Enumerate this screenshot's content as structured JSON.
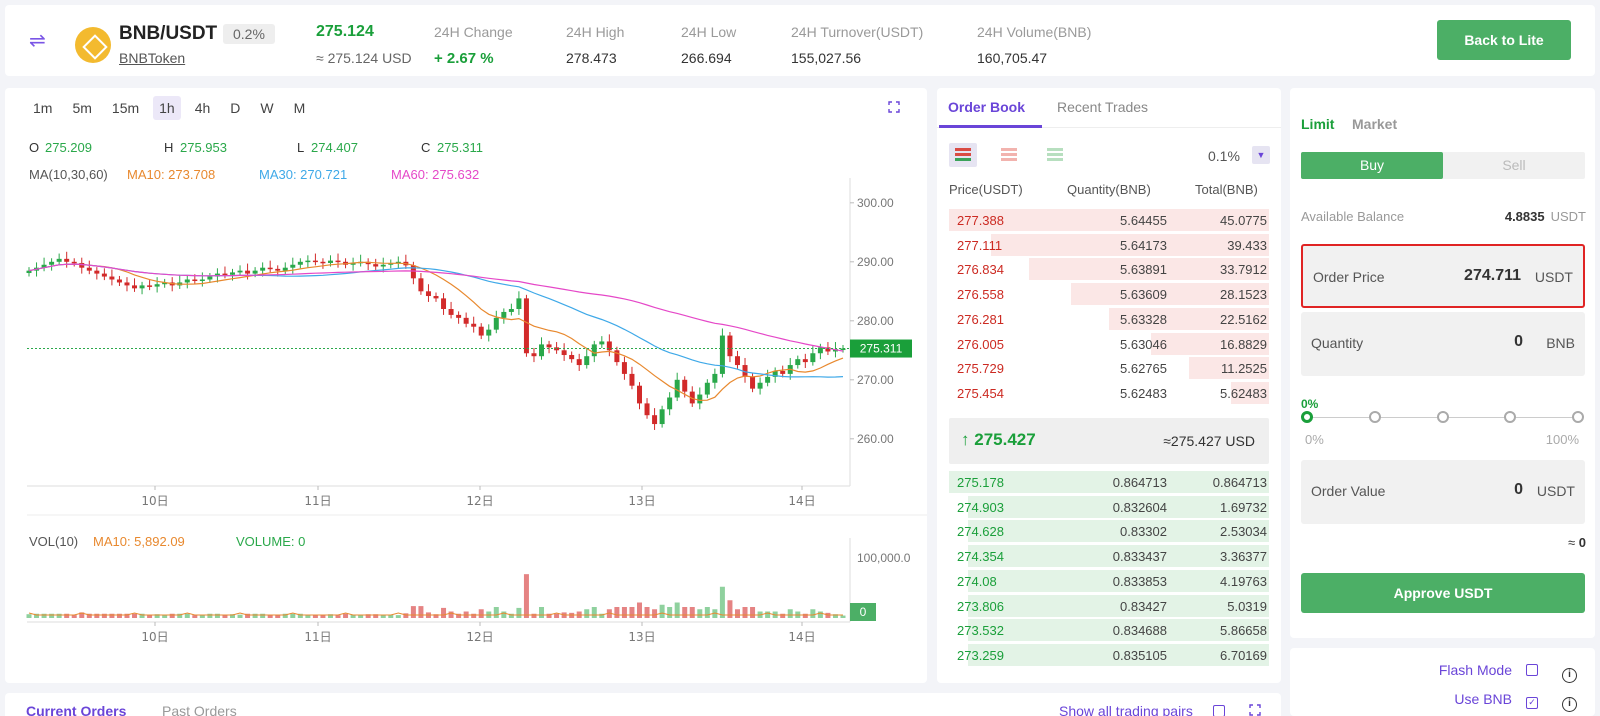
{
  "header": {
    "pair": "BNB/USDT",
    "pct_badge": "0.2%",
    "token_link": "BNBToken",
    "last_price": "275.124",
    "last_price_usd": "≈ 275.124 USD",
    "stats": [
      {
        "label": "24H Change",
        "value": "+ 2.67 %"
      },
      {
        "label": "24H High",
        "value": "278.473"
      },
      {
        "label": "24H Low",
        "value": "266.694"
      },
      {
        "label": "24H Turnover(USDT)",
        "value": "155,027.56"
      },
      {
        "label": "24H Volume(BNB)",
        "value": "160,705.47"
      }
    ],
    "back_button": "Back to Lite"
  },
  "chart": {
    "intervals": [
      "1m",
      "5m",
      "15m",
      "1h",
      "4h",
      "D",
      "W",
      "M"
    ],
    "active_interval": "1h",
    "ohlc": {
      "o_label": "O",
      "o": "275.209",
      "h_label": "H",
      "h": "275.953",
      "l_label": "L",
      "l": "274.407",
      "c_label": "C",
      "c": "275.311"
    },
    "ma": {
      "label": "MA(10,30,60)",
      "ma10": "MA10: 273.708",
      "ma30": "MA30: 270.721",
      "ma60": "MA60: 275.632"
    },
    "vol": {
      "label": "VOL(10)",
      "ma10": "MA10: 5,892.09",
      "volume": "VOLUME: 0"
    },
    "colors": {
      "up": "#2aa84a",
      "down": "#d22a2a",
      "ma10": "#e8892f",
      "ma30": "#3fa9e8",
      "ma60": "#e548c8"
    }
  },
  "chart_data": {
    "type": "candlestick",
    "x_ticks": [
      "10日",
      "11日",
      "12日",
      "13日",
      "14日"
    ],
    "y_ticks": [
      "300.00",
      "290.00",
      "280.00",
      "270.00",
      "260.00"
    ],
    "ylim": [
      252,
      302
    ],
    "current_price_label": "275.311",
    "close_series": [
      288.5,
      289,
      289.5,
      290,
      290.5,
      290,
      289.8,
      289,
      288.5,
      288,
      287.5,
      287,
      286.5,
      286,
      285.5,
      286,
      285.8,
      286.2,
      286.5,
      286,
      286.5,
      287,
      286.8,
      287,
      287.5,
      288,
      287.8,
      288.2,
      288.5,
      288,
      288.5,
      289,
      288.8,
      288.5,
      289,
      289.5,
      290,
      290.2,
      290,
      289.8,
      290.2,
      290,
      289.5,
      289.8,
      290,
      289.6,
      289.2,
      289.5,
      289.8,
      290,
      289.4,
      287.2,
      285,
      284.2,
      283.8,
      282,
      281,
      280.5,
      279.5,
      279,
      277.5,
      278.5,
      280.5,
      281.5,
      282,
      283.8,
      274.5,
      274,
      276,
      275.5,
      275,
      274.2,
      273.5,
      272.5,
      274,
      276,
      276.5,
      275,
      273,
      271,
      269,
      266,
      264,
      262.5,
      265,
      267,
      270,
      268,
      266,
      267.5,
      269.5,
      271,
      277.5,
      274,
      272.5,
      270.5,
      268.5,
      269.5,
      270.5,
      271.5,
      271,
      272.5,
      273.5,
      273,
      274.5,
      275.5,
      274.8,
      275.2,
      275.3
    ],
    "volume_axis_label": "100,000.0",
    "volume_current_label": "0"
  },
  "orderbook": {
    "tabs": [
      "Order Book",
      "Recent Trades"
    ],
    "precision": "0.1%",
    "headers": [
      "Price(USDT)",
      "Quantity(BNB)",
      "Total(BNB)"
    ],
    "asks": [
      {
        "price": "277.388",
        "qty": "5.64455",
        "total": "45.0775",
        "depth": 1.0
      },
      {
        "price": "277.111",
        "qty": "5.64173",
        "total": "39.433",
        "depth": 0.87
      },
      {
        "price": "276.834",
        "qty": "5.63891",
        "total": "33.7912",
        "depth": 0.75
      },
      {
        "price": "276.558",
        "qty": "5.63609",
        "total": "28.1523",
        "depth": 0.62
      },
      {
        "price": "276.281",
        "qty": "5.63328",
        "total": "22.5162",
        "depth": 0.5
      },
      {
        "price": "276.005",
        "qty": "5.63046",
        "total": "16.8829",
        "depth": 0.37
      },
      {
        "price": "275.729",
        "qty": "5.62765",
        "total": "11.2525",
        "depth": 0.25
      },
      {
        "price": "275.454",
        "qty": "5.62483",
        "total": "5.62483",
        "depth": 0.12
      }
    ],
    "mid_price": "275.427",
    "mid_usd": "≈275.427 USD",
    "bids": [
      {
        "price": "275.178",
        "qty": "0.864713",
        "total": "0.864713",
        "depth": 1.0
      },
      {
        "price": "274.903",
        "qty": "0.832604",
        "total": "1.69732",
        "depth": 0.94
      },
      {
        "price": "274.628",
        "qty": "0.83302",
        "total": "2.53034",
        "depth": 0.94
      },
      {
        "price": "274.354",
        "qty": "0.833437",
        "total": "3.36377",
        "depth": 0.94
      },
      {
        "price": "274.08",
        "qty": "0.833853",
        "total": "4.19763",
        "depth": 0.94
      },
      {
        "price": "273.806",
        "qty": "0.83427",
        "total": "5.0319",
        "depth": 0.94
      },
      {
        "price": "273.532",
        "qty": "0.834688",
        "total": "5.86658",
        "depth": 0.94
      },
      {
        "price": "273.259",
        "qty": "0.835105",
        "total": "6.70169",
        "depth": 0.94
      }
    ]
  },
  "trade": {
    "tabs": [
      "Limit",
      "Market"
    ],
    "buy_label": "Buy",
    "sell_label": "Sell",
    "available_label": "Available Balance",
    "available_value": "4.8835",
    "available_unit": "USDT",
    "order_price_label": "Order Price",
    "order_price_value": "274.711",
    "order_price_unit": "USDT",
    "quantity_label": "Quantity",
    "quantity_value": "0",
    "quantity_unit": "BNB",
    "slider_value": "0%",
    "slider_min": "0%",
    "slider_max": "100%",
    "order_value_label": "Order Value",
    "order_value_value": "0",
    "order_value_unit": "USDT",
    "approx_prefix": "≈",
    "approx_value": "0",
    "approve_button": "Approve USDT"
  },
  "settings": {
    "flash_mode": "Flash Mode",
    "use_bnb": "Use BNB"
  },
  "orders": {
    "tabs": [
      "Current Orders",
      "Past Orders"
    ],
    "show_all": "Show all trading pairs"
  }
}
